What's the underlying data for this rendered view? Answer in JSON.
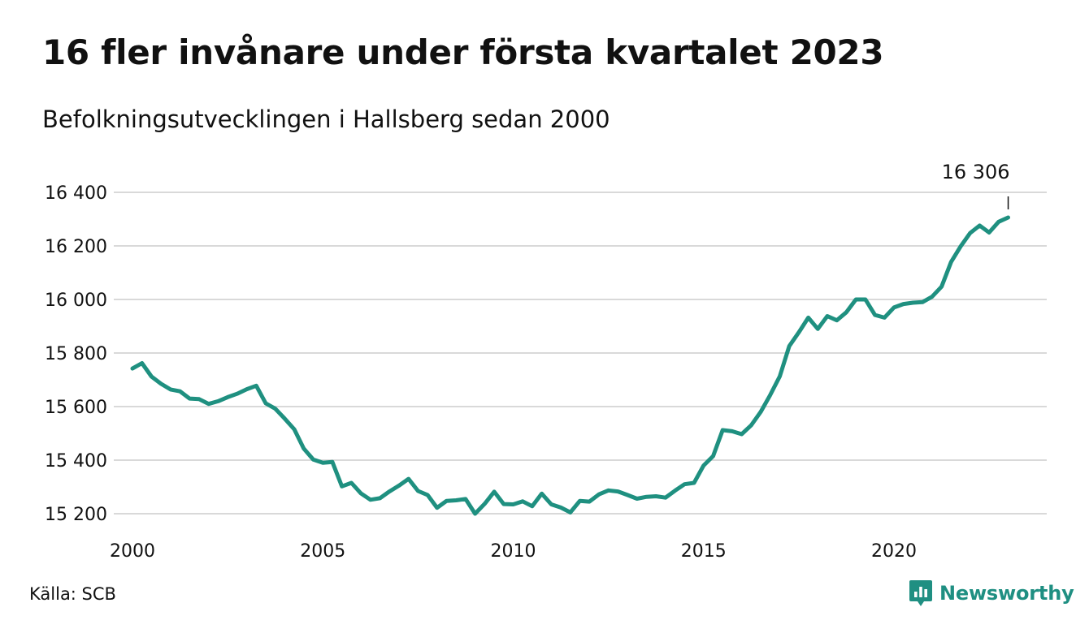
{
  "chart_data": {
    "type": "line",
    "title": "16 fler invånare under första kvartalet 2023",
    "subtitle": "Befolkningsutvecklingen i Hallsberg sedan 2000",
    "xlabel": "",
    "ylabel": "",
    "x_start": 2000.0,
    "x_step": 0.25,
    "xlim": [
      2000,
      2023.5
    ],
    "ylim": [
      15180,
      16420
    ],
    "x_ticks": [
      2000,
      2005,
      2010,
      2015,
      2020
    ],
    "x_tick_labels": [
      "2000",
      "2005",
      "2010",
      "2015",
      "2020"
    ],
    "y_ticks": [
      15200,
      15400,
      15600,
      15800,
      16000,
      16200,
      16400
    ],
    "y_tick_labels": [
      "15 200",
      "15 400",
      "15 600",
      "15 800",
      "16 000",
      "16 200",
      "16 400"
    ],
    "grid": "horizontal",
    "line_color": "#1f9080",
    "series": [
      {
        "values": [
          15742,
          15762,
          15712,
          15685,
          15664,
          15657,
          15630,
          15628,
          15610,
          15620,
          15635,
          15648,
          15665,
          15678,
          15612,
          15592,
          15555,
          15515,
          15443,
          15402,
          15390,
          15393,
          15302,
          15315,
          15276,
          15252,
          15258,
          15283,
          15305,
          15330,
          15285,
          15270,
          15222,
          15248,
          15250,
          15255,
          15200,
          15237,
          15282,
          15236,
          15235,
          15246,
          15228,
          15275,
          15235,
          15223,
          15205,
          15248,
          15245,
          15272,
          15287,
          15283,
          15270,
          15256,
          15263,
          15265,
          15260,
          15286,
          15310,
          15315,
          15380,
          15415,
          15512,
          15508,
          15497,
          15530,
          15580,
          15643,
          15713,
          15826,
          15877,
          15932,
          15890,
          15938,
          15922,
          15952,
          16000,
          16000,
          15942,
          15932,
          15970,
          15983,
          15988,
          15990,
          16010,
          16048,
          16140,
          16198,
          16248,
          16276,
          16250,
          16290,
          16306
        ]
      }
    ],
    "annotations": [
      {
        "x": 2023.0,
        "y": 16306,
        "label": "16 306"
      }
    ]
  },
  "footer": {
    "source": "Källa: SCB",
    "brand": "Newsworthy"
  }
}
